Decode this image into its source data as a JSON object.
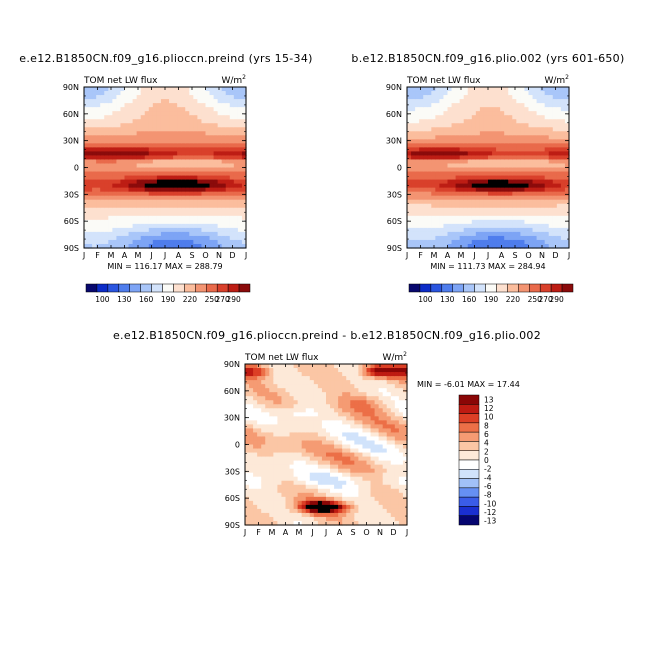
{
  "colors": {
    "levels_abs": [
      "#08086e",
      "#0c2cc8",
      "#2a55e0",
      "#4f7ded",
      "#7da4f5",
      "#a9c6f9",
      "#d3e3fb",
      "#fbfbf7",
      "#fde0cf",
      "#fbbd9d",
      "#f39472",
      "#e96a4b",
      "#d9402b",
      "#bd1d14",
      "#8b0b0b"
    ],
    "levels_diff": [
      "#050570",
      "#1a2fd0",
      "#3a5ce8",
      "#6690f3",
      "#a1c1f8",
      "#d1e3fb",
      "#ffffff",
      "#fde9d8",
      "#fbc6a5",
      "#f59b73",
      "#ec6f47",
      "#dc3f25",
      "#be1b12",
      "#8a0606"
    ]
  },
  "chart_data": [
    {
      "type": "heatmap",
      "id": "panel-left",
      "title": "e.e12.B1850CN.f09_g16.plioccn.preind (yrs 15-34)",
      "subtitle_left": "TOM net LW flux",
      "units": "W/m",
      "units_sup": "2",
      "xticks": [
        "J",
        "F",
        "M",
        "A",
        "M",
        "J",
        "J",
        "A",
        "S",
        "O",
        "N",
        "D",
        "J"
      ],
      "yticks": [
        "90N",
        "60N",
        "30N",
        "0",
        "30S",
        "60S",
        "90S"
      ],
      "min_max_label": "MIN = 116.17 MAX = 288.79",
      "min": 116.17,
      "max": 288.79,
      "colorbar_labels": [
        "100",
        "130",
        "160",
        "190",
        "220",
        "250",
        "270",
        "290"
      ],
      "colorbar_levels": [
        90,
        100,
        115,
        130,
        145,
        160,
        175,
        190,
        205,
        220,
        235,
        250,
        260,
        270,
        280,
        290
      ]
    },
    {
      "type": "heatmap",
      "id": "panel-right",
      "title": "b.e12.B1850CN.f09_g16.plio.002 (yrs 601-650)",
      "subtitle_left": "TOM net LW flux",
      "units": "W/m",
      "units_sup": "2",
      "xticks": [
        "J",
        "F",
        "M",
        "A",
        "M",
        "J",
        "J",
        "A",
        "S",
        "O",
        "N",
        "D",
        "J"
      ],
      "yticks": [
        "90N",
        "60N",
        "30N",
        "0",
        "30S",
        "60S",
        "90S"
      ],
      "min_max_label": "MIN = 111.73 MAX = 284.94",
      "min": 111.73,
      "max": 284.94,
      "colorbar_labels": [
        "100",
        "130",
        "160",
        "190",
        "220",
        "250",
        "270",
        "290"
      ],
      "colorbar_levels": [
        90,
        100,
        115,
        130,
        145,
        160,
        175,
        190,
        205,
        220,
        235,
        250,
        260,
        270,
        280,
        290
      ]
    },
    {
      "type": "heatmap",
      "id": "panel-diff",
      "title": "e.e12.B1850CN.f09_g16.plioccn.preind - b.e12.B1850CN.f09_g16.plio.002",
      "subtitle_left": "TOM net LW flux",
      "units": "W/m",
      "units_sup": "2",
      "xticks": [
        "J",
        "F",
        "M",
        "A",
        "M",
        "J",
        "J",
        "A",
        "S",
        "O",
        "N",
        "D",
        "J"
      ],
      "yticks": [
        "90N",
        "60N",
        "30N",
        "0",
        "30S",
        "60S",
        "90S"
      ],
      "min_max_label": "MIN =  -6.01 MAX =  17.44",
      "min": -6.01,
      "max": 17.44,
      "colorbar_labels": [
        "13",
        "12",
        "10",
        "8",
        "6",
        "4",
        "2",
        "0",
        "-2",
        "-4",
        "-6",
        "-8",
        "-10",
        "-12",
        "-13"
      ],
      "colorbar_levels": [
        -13,
        -12,
        -10,
        -8,
        -6,
        -4,
        -2,
        0,
        2,
        4,
        6,
        8,
        10,
        12,
        13
      ]
    }
  ]
}
